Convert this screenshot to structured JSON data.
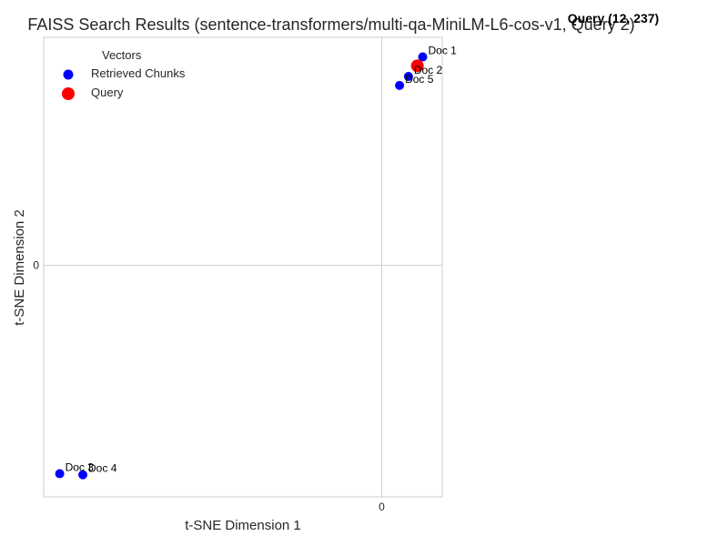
{
  "chart_data": {
    "type": "scatter",
    "title": "FAISS Search Results (sentence-transformers/multi-qa-MiniLM-L6-cos-v1, Query 2)",
    "xlabel": "t-SNE Dimension 1",
    "ylabel": "t-SNE Dimension 2",
    "xlim": [
      -95,
      17
    ],
    "ylim": [
      -65,
      64
    ],
    "xticks": [
      0
    ],
    "yticks": [
      0
    ],
    "grid": true,
    "legend": {
      "title": "Vectors",
      "placement": "top-left",
      "entries": [
        "Retrieved Chunks",
        "Query"
      ]
    },
    "series": [
      {
        "name": "Retrieved Chunks",
        "color": "#0000ff",
        "points": [
          {
            "label": "Doc 1",
            "x": 11.5,
            "y": 58.5
          },
          {
            "label": "Doc 2",
            "x": 7.5,
            "y": 53.0
          },
          {
            "label": "Doc 5",
            "x": 5.0,
            "y": 50.5
          },
          {
            "label": "Doc 3",
            "x": -90.5,
            "y": -58.5
          },
          {
            "label": "Doc 4",
            "x": -84.0,
            "y": -58.8
          }
        ]
      },
      {
        "name": "Query",
        "color": "#ff0000",
        "points": [
          {
            "label": "",
            "x": 10.0,
            "y": 56.0
          }
        ]
      }
    ],
    "annotation": "Query (12, 237)"
  }
}
